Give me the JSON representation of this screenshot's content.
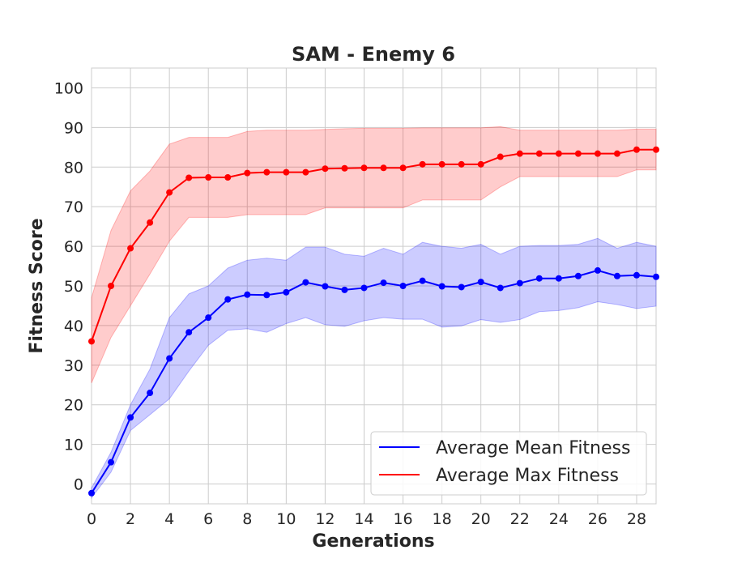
{
  "chart_data": {
    "type": "line",
    "title": "SAM - Enemy 6",
    "xlabel": "Generations",
    "ylabel": "Fitness Score",
    "xlim": [
      0,
      29
    ],
    "ylim": [
      -5,
      105
    ],
    "xticks": [
      0,
      2,
      4,
      6,
      8,
      10,
      12,
      14,
      16,
      18,
      20,
      22,
      24,
      26,
      28
    ],
    "yticks": [
      0,
      10,
      20,
      30,
      40,
      50,
      60,
      70,
      80,
      90,
      100
    ],
    "grid": true,
    "legend_position": "lower-right",
    "x": [
      0,
      1,
      2,
      3,
      4,
      5,
      6,
      7,
      8,
      9,
      10,
      11,
      12,
      13,
      14,
      15,
      16,
      17,
      18,
      19,
      20,
      21,
      22,
      23,
      24,
      25,
      26,
      27,
      28,
      29
    ],
    "series": [
      {
        "name": "Average Mean Fitness",
        "color": "#0000ff",
        "band_color": "#0000ff",
        "values": [
          -2.3,
          5.5,
          16.8,
          23.0,
          31.7,
          38.3,
          42.0,
          46.6,
          47.8,
          47.7,
          48.4,
          50.9,
          49.9,
          49.0,
          49.5,
          50.8,
          50.0,
          51.3,
          49.9,
          49.7,
          51.0,
          49.5,
          50.7,
          51.9,
          51.9,
          52.5,
          53.9,
          52.5,
          52.7,
          52.3
        ],
        "upper": [
          -1.0,
          8.0,
          20.0,
          29.0,
          42.0,
          48.0,
          50.0,
          54.5,
          56.5,
          57.0,
          56.5,
          59.8,
          59.8,
          58.0,
          57.5,
          59.5,
          58.0,
          61.0,
          60.0,
          59.5,
          60.5,
          58.0,
          60.0,
          60.2,
          60.2,
          60.5,
          62.0,
          59.5,
          61.0,
          60.0
        ],
        "lower": [
          -3.5,
          3.0,
          13.5,
          17.5,
          21.5,
          28.5,
          35.0,
          38.8,
          39.2,
          38.3,
          40.5,
          42.0,
          40.2,
          39.8,
          41.2,
          42.0,
          41.6,
          41.6,
          39.6,
          39.9,
          41.5,
          40.8,
          41.5,
          43.5,
          43.8,
          44.5,
          46.0,
          45.3,
          44.3,
          44.9
        ]
      },
      {
        "name": "Average Max Fitness",
        "color": "#ff0000",
        "band_color": "#ff0000",
        "values": [
          36.0,
          50.0,
          59.5,
          66.0,
          73.6,
          77.3,
          77.4,
          77.4,
          78.5,
          78.7,
          78.7,
          78.7,
          79.6,
          79.7,
          79.8,
          79.8,
          79.8,
          80.7,
          80.7,
          80.7,
          80.7,
          82.6,
          83.4,
          83.4,
          83.4,
          83.4,
          83.4,
          83.4,
          84.4,
          84.4
        ],
        "upper": [
          47.0,
          64.0,
          74.0,
          79.0,
          85.8,
          87.5,
          87.5,
          87.5,
          89.0,
          89.3,
          89.3,
          89.3,
          89.5,
          89.7,
          89.8,
          89.8,
          89.8,
          89.9,
          89.9,
          89.9,
          89.9,
          90.2,
          89.3,
          89.3,
          89.3,
          89.3,
          89.3,
          89.3,
          89.6,
          89.6
        ],
        "lower": [
          25.5,
          37.0,
          45.0,
          53.0,
          61.3,
          67.3,
          67.3,
          67.3,
          68.0,
          68.0,
          68.0,
          68.0,
          69.7,
          69.7,
          69.7,
          69.7,
          69.7,
          71.7,
          71.7,
          71.7,
          71.7,
          75.0,
          77.6,
          77.6,
          77.6,
          77.6,
          77.6,
          77.6,
          79.3,
          79.3
        ]
      }
    ]
  }
}
